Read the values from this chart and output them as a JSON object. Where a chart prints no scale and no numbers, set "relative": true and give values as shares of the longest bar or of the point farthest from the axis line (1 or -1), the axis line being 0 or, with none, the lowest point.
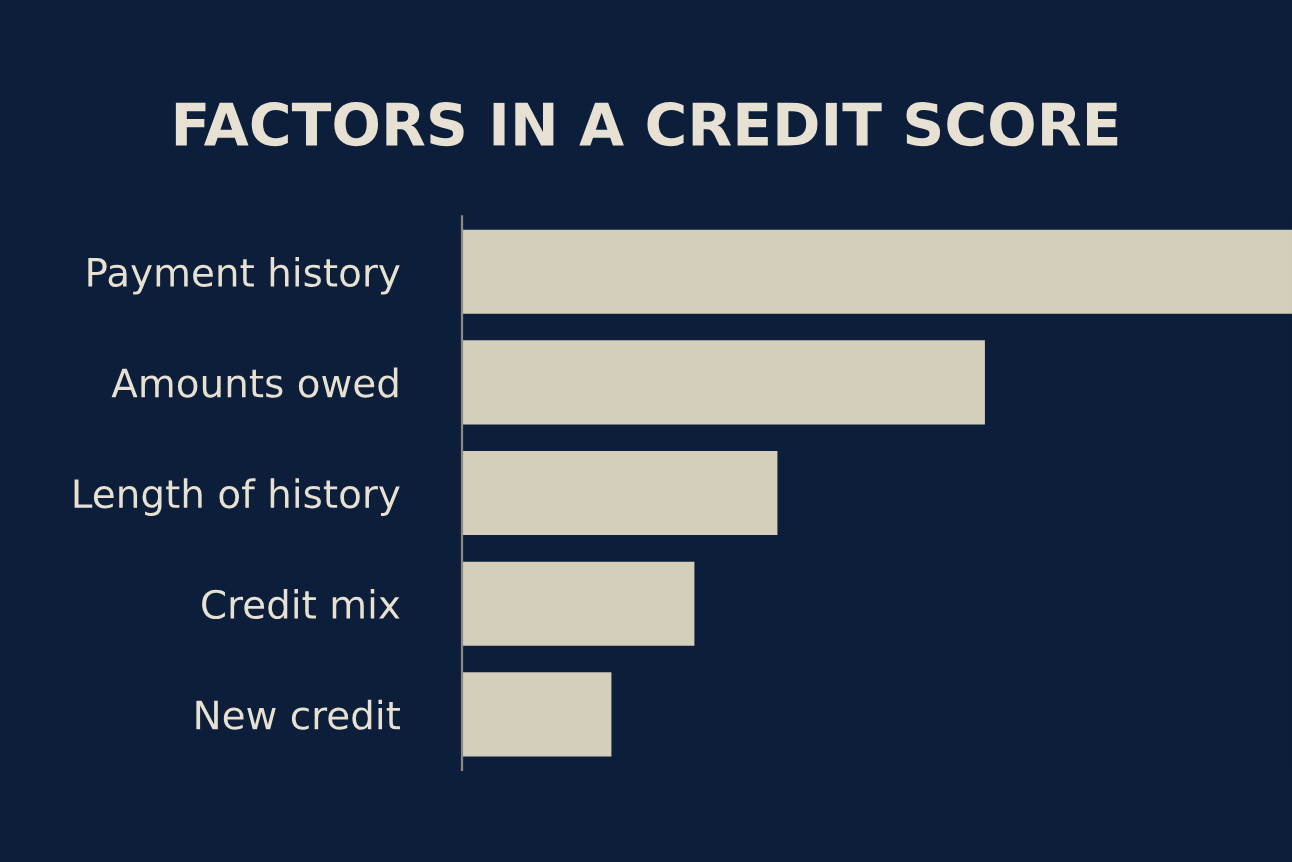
{
  "chart_data": {
    "type": "bar",
    "orientation": "horizontal",
    "relative": true,
    "title": "FACTORS IN A CREDIT SCORE",
    "categories": [
      "Payment history",
      "Amounts owed",
      "Length of history",
      "Credit mix",
      "New credit"
    ],
    "values": [
      1,
      0.63,
      0.38,
      0.28,
      0.18
    ],
    "color": "#d4cfbb",
    "grid": false,
    "legend": false
  }
}
